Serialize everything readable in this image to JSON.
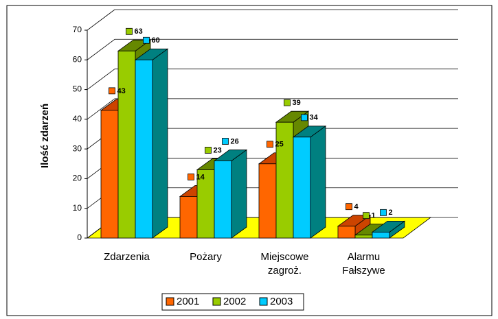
{
  "chart_data": {
    "type": "bar3d",
    "y_label": "Ilość zdarzeń",
    "categories": [
      "Zdarzenia",
      "Pożary",
      "Miejscowe zagroż.",
      "Alarmu Fałszywe"
    ],
    "series": [
      {
        "name": "2001",
        "color": "#ff6600",
        "side_color": "#cc4400",
        "values": [
          43,
          14,
          25,
          4
        ]
      },
      {
        "name": "2002",
        "color": "#99cc00",
        "side_color": "#668800",
        "values": [
          63,
          23,
          39,
          1
        ]
      },
      {
        "name": "2003",
        "color": "#00ccff",
        "side_color": "#008080",
        "values": [
          60,
          26,
          34,
          2
        ]
      }
    ],
    "ylim": [
      0,
      70
    ],
    "yticks": [
      0,
      10,
      20,
      30,
      40,
      50,
      60,
      70
    ],
    "grid": true,
    "floor_color": "#ffff00",
    "legend": "bottom"
  }
}
